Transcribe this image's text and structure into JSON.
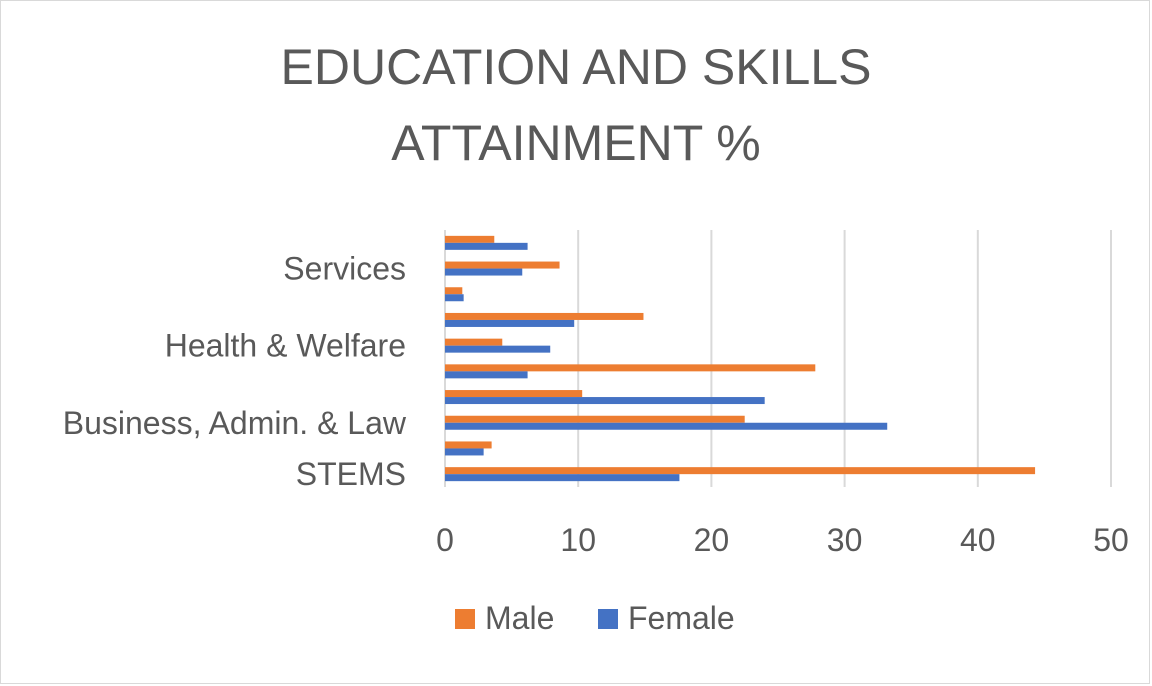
{
  "chart_data": {
    "type": "bar",
    "orientation": "horizontal",
    "title_lines": [
      "EDUCATION AND SKILLS",
      "ATTAINMENT %"
    ],
    "categories": [
      "STEMS",
      "",
      "Business, Admin. & Law",
      "",
      "",
      "Health & Welfare",
      "",
      "",
      "Services",
      ""
    ],
    "series": [
      {
        "name": "Male",
        "color": "#ed7d31",
        "values": [
          44.3,
          3.5,
          22.5,
          10.3,
          27.8,
          4.3,
          14.9,
          1.3,
          8.6,
          3.7
        ]
      },
      {
        "name": "Female",
        "color": "#4472c4",
        "values": [
          17.6,
          2.9,
          33.2,
          24.0,
          6.2,
          7.9,
          9.7,
          1.4,
          5.8,
          6.2
        ]
      }
    ],
    "xlim": [
      0,
      50
    ],
    "xticks": [
      0,
      10,
      20,
      30,
      40,
      50
    ],
    "gridlines": true,
    "legend_position": "bottom"
  }
}
